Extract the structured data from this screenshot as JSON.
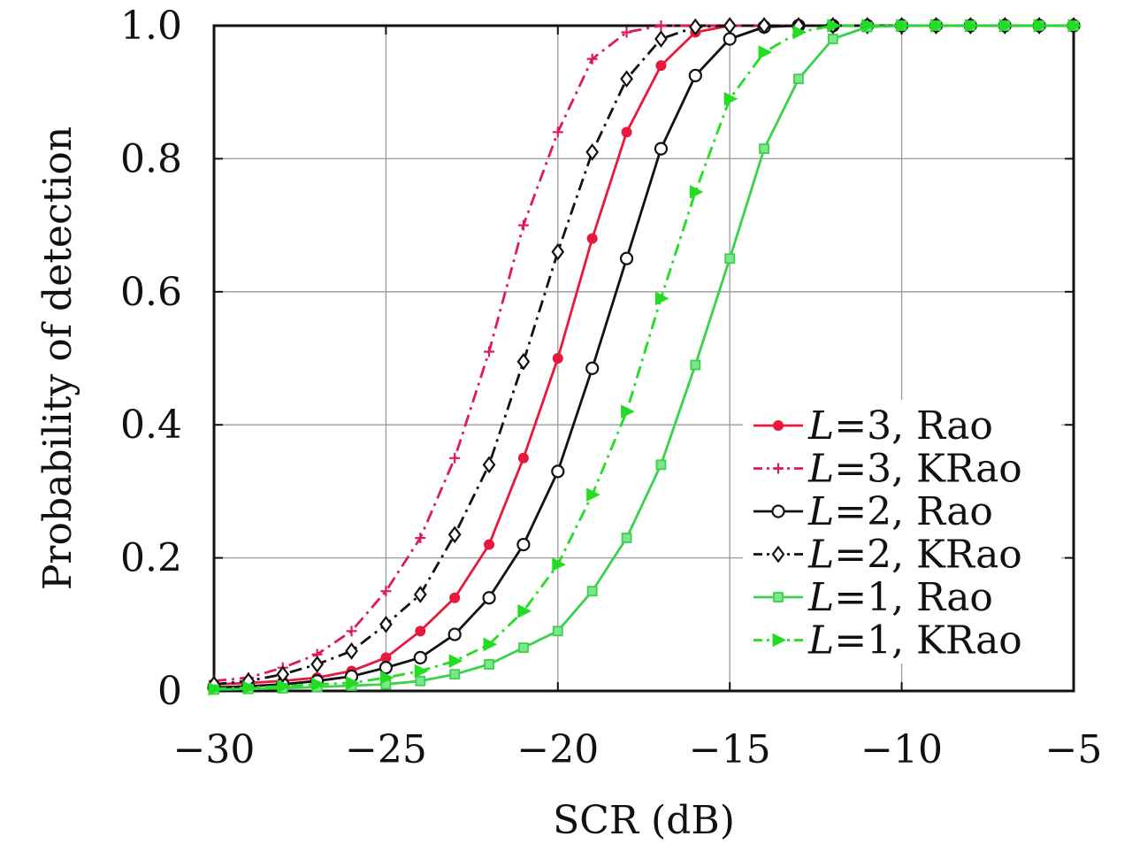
{
  "chart_data": {
    "type": "line",
    "title": "",
    "xlabel": "SCR (dB)",
    "ylabel": "Probability of detection",
    "xlim": [
      -30,
      -5
    ],
    "ylim": [
      0,
      1
    ],
    "grid": true,
    "legend_position": "middle-right",
    "x_ticks": [
      -30,
      -25,
      -20,
      -15,
      -10,
      -5
    ],
    "x_tick_labels": [
      "−30",
      "−25",
      "−20",
      "−15",
      "−10",
      "−5"
    ],
    "y_ticks": [
      0,
      0.2,
      0.4,
      0.6,
      0.8,
      1.0
    ],
    "y_tick_labels": [
      "0",
      "0.2",
      "0.4",
      "0.6",
      "0.8",
      "1.0"
    ],
    "x": [
      -30,
      -29,
      -28,
      -27,
      -26,
      -25,
      -24,
      -23,
      -22,
      -21,
      -20,
      -19,
      -18,
      -17,
      -16,
      -15,
      -14,
      -13,
      -12,
      -11,
      -10,
      -9,
      -8,
      -7,
      -6,
      -5
    ],
    "series": [
      {
        "name": "L=3, Rao",
        "legend_var": "L",
        "legend_rest": "=3, Rao",
        "color": "#e8193c",
        "dash": "solid",
        "marker": "dot",
        "values": [
          0.01,
          0.012,
          0.015,
          0.02,
          0.03,
          0.05,
          0.09,
          0.14,
          0.22,
          0.35,
          0.5,
          0.68,
          0.84,
          0.94,
          0.99,
          1.0,
          1.0,
          1.0,
          1.0,
          1.0,
          1.0,
          1.0,
          1.0,
          1.0,
          1.0,
          1.0
        ]
      },
      {
        "name": "L=3, KRao",
        "legend_var": "L",
        "legend_rest": "=3, KRao",
        "color": "#e0195a",
        "dash": "dashdot",
        "marker": "plus",
        "values": [
          0.015,
          0.02,
          0.035,
          0.055,
          0.09,
          0.15,
          0.23,
          0.35,
          0.51,
          0.7,
          0.84,
          0.95,
          0.99,
          1.0,
          1.0,
          1.0,
          1.0,
          1.0,
          1.0,
          1.0,
          1.0,
          1.0,
          1.0,
          1.0,
          1.0,
          1.0
        ]
      },
      {
        "name": "L=2, Rao",
        "legend_var": "L",
        "legend_rest": "=2, Rao",
        "color": "#111111",
        "dash": "solid",
        "marker": "circle",
        "values": [
          0.005,
          0.007,
          0.01,
          0.015,
          0.022,
          0.035,
          0.05,
          0.085,
          0.14,
          0.22,
          0.33,
          0.485,
          0.65,
          0.815,
          0.925,
          0.98,
          0.998,
          1.0,
          1.0,
          1.0,
          1.0,
          1.0,
          1.0,
          1.0,
          1.0,
          1.0
        ]
      },
      {
        "name": "L=2, KRao",
        "legend_var": "L",
        "legend_rest": "=2, KRao",
        "color": "#111111",
        "dash": "dashdot",
        "marker": "diamond",
        "values": [
          0.01,
          0.015,
          0.025,
          0.04,
          0.06,
          0.1,
          0.145,
          0.235,
          0.34,
          0.495,
          0.66,
          0.81,
          0.92,
          0.98,
          0.998,
          1.0,
          1.0,
          1.0,
          1.0,
          1.0,
          1.0,
          1.0,
          1.0,
          1.0,
          1.0,
          1.0
        ]
      },
      {
        "name": "L=1, Rao",
        "legend_var": "L",
        "legend_rest": "=1, Rao",
        "color": "#39d24a",
        "dash": "solid",
        "marker": "square",
        "values": [
          0.002,
          0.003,
          0.004,
          0.006,
          0.008,
          0.01,
          0.015,
          0.025,
          0.04,
          0.065,
          0.09,
          0.15,
          0.23,
          0.34,
          0.49,
          0.65,
          0.815,
          0.92,
          0.98,
          0.998,
          1.0,
          1.0,
          1.0,
          1.0,
          1.0,
          1.0
        ]
      },
      {
        "name": "L=1, KRao",
        "legend_var": "L",
        "legend_rest": "=1, KRao",
        "color": "#22dd22",
        "dash": "dashdot",
        "marker": "triangle",
        "values": [
          0.003,
          0.005,
          0.007,
          0.01,
          0.012,
          0.02,
          0.03,
          0.045,
          0.07,
          0.12,
          0.19,
          0.295,
          0.42,
          0.59,
          0.75,
          0.89,
          0.96,
          0.99,
          1.0,
          1.0,
          1.0,
          1.0,
          1.0,
          1.0,
          1.0,
          1.0
        ]
      }
    ]
  }
}
